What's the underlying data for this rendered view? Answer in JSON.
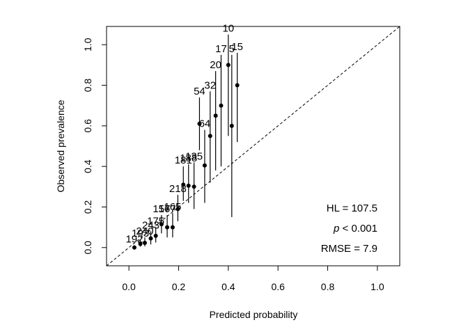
{
  "chart_data": {
    "type": "scatter",
    "xlabel": "Predicted probability",
    "ylabel": "Observed prevalence",
    "xlim": [
      -0.09,
      1.09
    ],
    "ylim": [
      -0.09,
      1.09
    ],
    "x_ticks": [
      "0.0",
      "0.2",
      "0.4",
      "0.6",
      "0.8",
      "1.0"
    ],
    "y_ticks": [
      "0.0",
      "0.2",
      "0.4",
      "0.6",
      "0.8",
      "1.0"
    ],
    "grid": false,
    "reference_line": "y = x",
    "stats": {
      "hl": "HL = 107.5",
      "p_prefix": "p",
      "p_rest": " < 0.001",
      "rmse": "RMSE = 7.9"
    },
    "points": [
      {
        "x": 0.022,
        "y": 0.0,
        "lo": 0.0,
        "hi": 0.012,
        "n": "192"
      },
      {
        "x": 0.046,
        "y": 0.018,
        "lo": 0.004,
        "hi": 0.04,
        "n": "193"
      },
      {
        "x": 0.064,
        "y": 0.023,
        "lo": 0.006,
        "hi": 0.05,
        "n": "240"
      },
      {
        "x": 0.088,
        "y": 0.045,
        "lo": 0.015,
        "hi": 0.08,
        "n": "243"
      },
      {
        "x": 0.108,
        "y": 0.058,
        "lo": 0.025,
        "hi": 0.1,
        "n": "175"
      },
      {
        "x": 0.131,
        "y": 0.115,
        "lo": 0.07,
        "hi": 0.16,
        "n": "157"
      },
      {
        "x": 0.154,
        "y": 0.1,
        "lo": 0.05,
        "hi": 0.16,
        "n": "167"
      },
      {
        "x": 0.176,
        "y": 0.1,
        "lo": 0.05,
        "hi": 0.17,
        "n": "165"
      },
      {
        "x": 0.197,
        "y": 0.19,
        "lo": 0.13,
        "hi": 0.26,
        "n": "218"
      },
      {
        "x": 0.219,
        "y": 0.31,
        "lo": 0.23,
        "hi": 0.4,
        "n": "181"
      },
      {
        "x": 0.24,
        "y": 0.305,
        "lo": 0.22,
        "hi": 0.41,
        "n": "188"
      },
      {
        "x": 0.262,
        "y": 0.3,
        "lo": 0.19,
        "hi": 0.42,
        "n": "135"
      },
      {
        "x": 0.284,
        "y": 0.61,
        "lo": 0.48,
        "hi": 0.74,
        "n": "54"
      },
      {
        "x": 0.305,
        "y": 0.405,
        "lo": 0.22,
        "hi": 0.58,
        "n": "64"
      },
      {
        "x": 0.327,
        "y": 0.55,
        "lo": 0.32,
        "hi": 0.77,
        "n": "32"
      },
      {
        "x": 0.349,
        "y": 0.65,
        "lo": 0.38,
        "hi": 0.87,
        "n": "20"
      },
      {
        "x": 0.371,
        "y": 0.7,
        "lo": 0.4,
        "hi": 0.95,
        "n": "17"
      },
      {
        "x": 0.4,
        "y": 0.9,
        "lo": 0.55,
        "hi": 1.05,
        "n": "10"
      },
      {
        "x": 0.414,
        "y": 0.6,
        "lo": 0.15,
        "hi": 0.95,
        "n": "5"
      },
      {
        "x": 0.436,
        "y": 0.8,
        "lo": 0.52,
        "hi": 0.96,
        "n": "15"
      }
    ]
  }
}
